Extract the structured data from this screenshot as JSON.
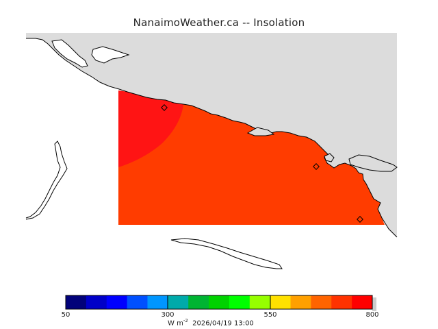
{
  "title": "NanaimoWeather.ca -- Insolation",
  "colorbar": {
    "ticks": [
      "50",
      "300",
      "550",
      "800"
    ],
    "unit_prefix": "W m",
    "unit_exponent": "-2",
    "timestamp": "2026/04/19 13:00",
    "colors": [
      "#02027a",
      "#0000c8",
      "#0000ff",
      "#0050ff",
      "#0096ff",
      "#00aaaa",
      "#00b432",
      "#00d200",
      "#00ff00",
      "#96ff00",
      "#ffe100",
      "#ffa000",
      "#ff6400",
      "#ff3200",
      "#ff0000"
    ]
  },
  "map": {
    "land_color": "#dcdcdc",
    "insolation_fill": "#ff3c00",
    "insolation_peak": "#ff1414"
  }
}
